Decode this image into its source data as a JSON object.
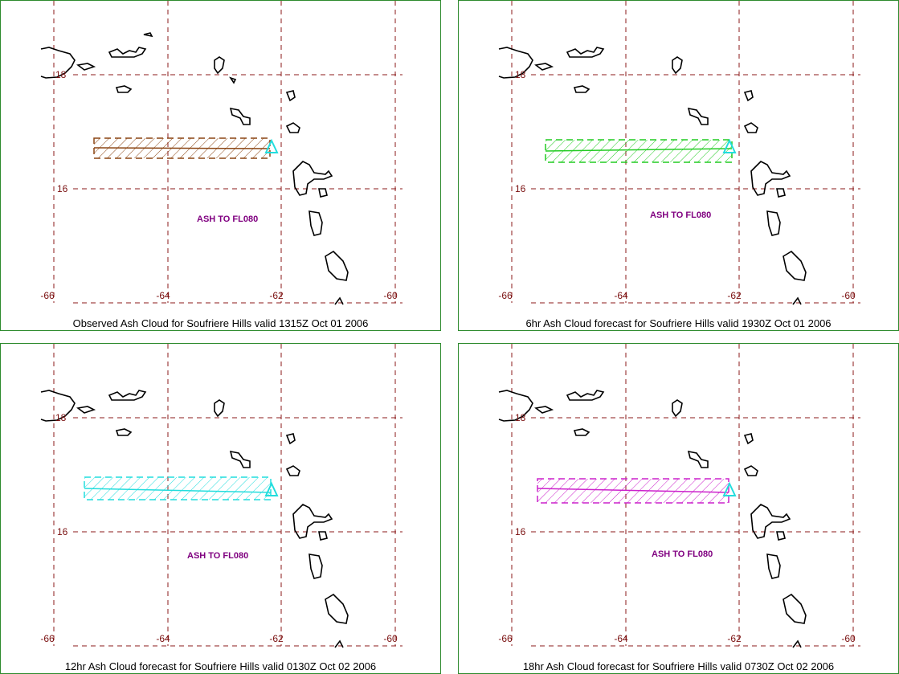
{
  "colors": {
    "grid": "#8b1a1a",
    "border": "#2e8b2e",
    "coast": "#000000",
    "label": "#800080"
  },
  "volcano_icon": "triangle-icon",
  "panels": [
    {
      "caption": "Observed Ash Cloud for Soufriere  Hills valid 1315Z Oct 01 2006",
      "ash_label": "ASH TO FL080",
      "ash_color": "#8b4513"
    },
    {
      "caption": "6hr Ash Cloud forecast for Soufriere  Hills valid 1930Z Oct 01 2006",
      "ash_label": "ASH TO FL080",
      "ash_color": "#22cc22"
    },
    {
      "caption": "12hr Ash Cloud forecast for Soufriere  Hills valid 0130Z Oct 02 2006",
      "ash_label": "ASH TO FL080",
      "ash_color": "#22dddd"
    },
    {
      "caption": "18hr Ash Cloud forecast for Soufriere  Hills valid 0730Z Oct 02 2006",
      "ash_label": "ASH TO FL080",
      "ash_color": "#cc22cc"
    }
  ],
  "lat_labels": [
    "18",
    "16"
  ],
  "lon_labels": [
    "-66",
    "-64",
    "-62",
    "-60"
  ]
}
